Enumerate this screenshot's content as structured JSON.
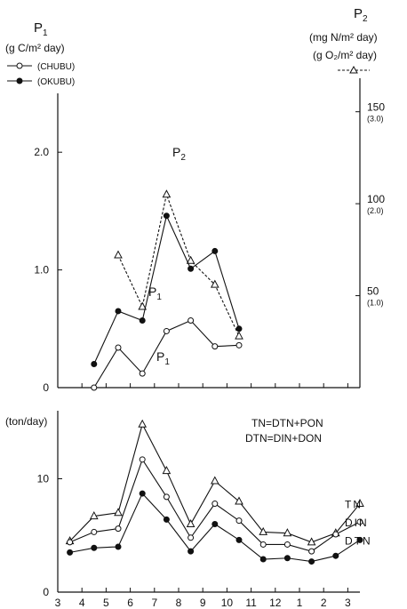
{
  "chart_data": [
    {
      "type": "line",
      "left_axis": {
        "label_symbol": "P",
        "label_subscript": "1",
        "label_unit": "(g C/m² day)",
        "ylim": [
          0,
          2.5
        ],
        "ticks": [
          0,
          1.0,
          2.0
        ],
        "tick_labels": [
          "0",
          "1.0",
          "2.0"
        ]
      },
      "right_axis": {
        "label_symbol": "P",
        "label_subscript": "2",
        "label_unit_1": "(mg N/m² day)",
        "label_unit_2": "(g O₂/m² day)",
        "ylim": [
          0,
          160
        ],
        "ticks": [
          50,
          100,
          150
        ],
        "tick_labels": [
          "50",
          "100",
          "150"
        ],
        "tick_sublabels": [
          "(1.0)",
          "(2.0)",
          "(3.0)"
        ]
      },
      "legend": [
        {
          "name": "(CHUBU)",
          "marker": "open-circle"
        },
        {
          "name": "(OKUBU)",
          "marker": "filled-circle"
        }
      ],
      "series": [
        {
          "name": "P₂",
          "label_symbol": "P",
          "label_subscript": "2",
          "axis": "right",
          "marker": "open-triangle",
          "dash": true,
          "x": [
            5.5,
            6.5,
            7.5,
            8.5,
            9.5,
            10.5
          ],
          "values": [
            72,
            44,
            105,
            69,
            56,
            28
          ]
        },
        {
          "name": "P₁ (OKUBU)",
          "label_symbol": "P",
          "label_subscript": "1",
          "axis": "left",
          "marker": "filled-circle",
          "dash": false,
          "x": [
            4.5,
            5.5,
            6.5,
            7.5,
            8.5,
            9.5,
            10.5
          ],
          "values": [
            0.2,
            0.65,
            0.57,
            1.46,
            1.01,
            1.16,
            0.5
          ]
        },
        {
          "name": "P₁ (CHUBU)",
          "label_symbol": "P",
          "label_subscript": "1",
          "axis": "left",
          "marker": "open-circle",
          "dash": false,
          "x": [
            4.5,
            5.5,
            6.5,
            7.5,
            8.5,
            9.5,
            10.5
          ],
          "values": [
            0.0,
            0.34,
            0.12,
            0.48,
            0.57,
            0.35,
            0.36
          ]
        }
      ]
    },
    {
      "type": "line",
      "ylabel": "(ton/day)",
      "ylim": [
        0,
        16
      ],
      "yticks": [
        0,
        10
      ],
      "ytick_labels": [
        "0",
        "10"
      ],
      "x_tick_labels": [
        "3",
        "4",
        "5",
        "6",
        "7",
        "8",
        "9",
        "10",
        "11",
        "12",
        "1",
        "2",
        "3"
      ],
      "annotations": [
        "TN=DTN+PON",
        "DTN=DIN+DON"
      ],
      "series": [
        {
          "name": "TN",
          "marker": "open-triangle",
          "x": [
            3.5,
            4.5,
            5.5,
            6.5,
            7.5,
            8.5,
            9.5,
            10.5,
            11.5,
            12.5,
            13.5,
            14.5,
            15.5
          ],
          "values": [
            4.5,
            6.7,
            7.0,
            14.8,
            10.7,
            6.0,
            9.8,
            8.0,
            5.3,
            5.2,
            4.4,
            5.2,
            7.8
          ]
        },
        {
          "name": "DIN",
          "marker": "open-circle",
          "x": [
            3.5,
            4.5,
            5.5,
            6.5,
            7.5,
            8.5,
            9.5,
            10.5,
            11.5,
            12.5,
            13.5,
            14.5,
            15.5
          ],
          "values": [
            4.4,
            5.3,
            5.6,
            11.7,
            8.4,
            4.8,
            7.8,
            6.3,
            4.2,
            4.2,
            3.6,
            5.1,
            6.2
          ]
        },
        {
          "name": "DTN",
          "marker": "filled-circle",
          "x": [
            3.5,
            4.5,
            5.5,
            6.5,
            7.5,
            8.5,
            9.5,
            10.5,
            11.5,
            12.5,
            13.5,
            14.5,
            15.5
          ],
          "values": [
            3.5,
            3.9,
            4.0,
            8.7,
            6.4,
            3.6,
            6.0,
            4.6,
            2.9,
            3.0,
            2.7,
            3.2,
            4.6
          ]
        }
      ]
    }
  ]
}
